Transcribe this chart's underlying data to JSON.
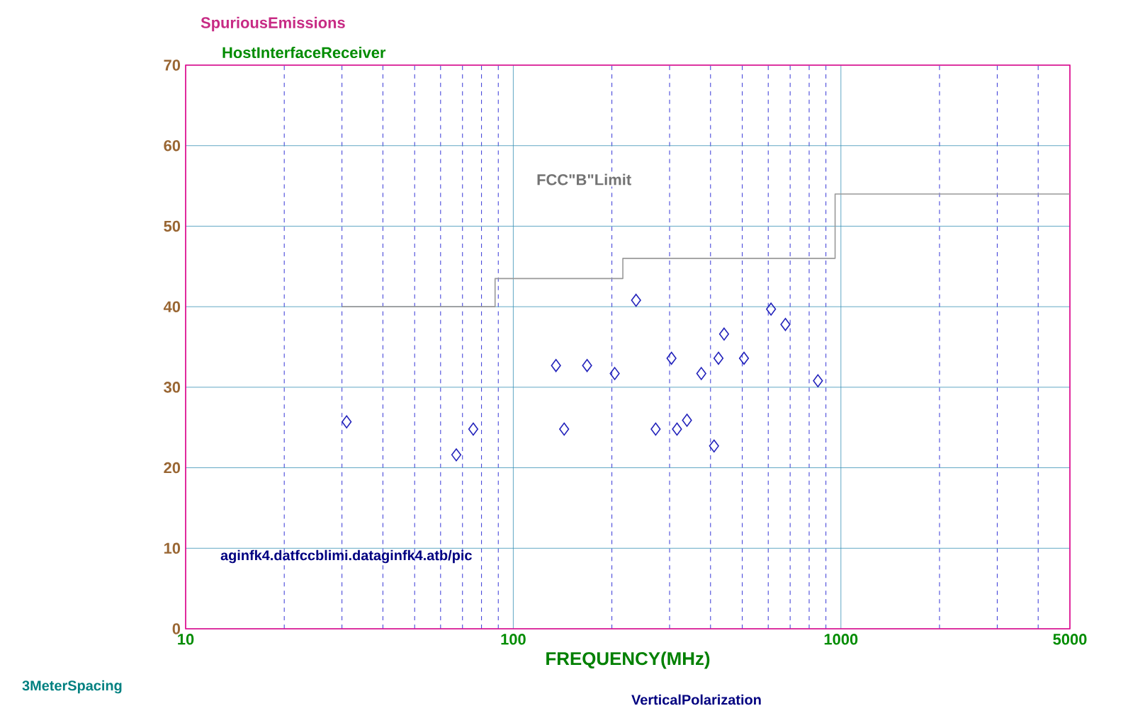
{
  "chart_data": {
    "type": "scatter",
    "title": "SpuriousEmissions",
    "subtitle": "HostInterfaceReceiver",
    "xlabel": "FREQUENCY(MHz)",
    "annotations": [
      "aginfk4.datfccblimi.dataginfk4.atb/pic",
      "3MeterSpacing",
      "VerticalPolarization"
    ],
    "log": "x",
    "xlim": [
      10,
      5000
    ],
    "xticks": [
      10,
      {
        "value": 20,
        "label": null
      },
      {
        "value": 30,
        "label": null
      },
      {
        "value": 40,
        "label": null
      },
      {
        "value": 50,
        "label": null
      },
      {
        "value": 60,
        "label": null
      },
      {
        "value": 70,
        "label": null
      },
      {
        "value": 80,
        "label": null
      },
      {
        "value": 90,
        "label": null
      },
      100,
      {
        "value": 200,
        "label": null
      },
      {
        "value": 300,
        "label": null
      },
      {
        "value": 400,
        "label": null
      },
      {
        "value": 500,
        "label": null
      },
      {
        "value": 600,
        "label": null
      },
      {
        "value": 700,
        "label": null
      },
      {
        "value": 800,
        "label": null
      },
      {
        "value": 900,
        "label": null
      },
      1000,
      {
        "value": 2000,
        "label": null
      },
      {
        "value": 3000,
        "label": null
      },
      {
        "value": 4000,
        "label": null
      },
      5000
    ],
    "ylim": [
      0,
      70
    ],
    "yticks": [
      0,
      10,
      20,
      30,
      40,
      50,
      60,
      70
    ],
    "grid": true,
    "series": [
      {
        "name": "FCC\"B\"Limit",
        "type": "line",
        "marker": "none",
        "color": "#999999",
        "x": [
          30,
          88,
          88,
          216,
          216,
          960,
          960,
          5000
        ],
        "values": [
          40,
          40,
          43.5,
          43.5,
          46,
          46,
          54,
          54
        ]
      },
      {
        "type": "scatter",
        "marker": "diamond",
        "color": "#2222bb",
        "x": [
          31,
          67,
          75.5,
          135,
          143,
          168,
          204,
          237,
          272,
          304,
          316,
          339,
          375,
          410,
          423,
          440,
          506,
          612,
          677,
          851
        ],
        "values": [
          25.7,
          21.6,
          24.8,
          32.7,
          24.8,
          32.7,
          31.7,
          40.8,
          24.8,
          33.6,
          24.8,
          25.9,
          31.7,
          22.7,
          33.6,
          36.6,
          33.6,
          39.7,
          37.8,
          30.8
        ]
      }
    ]
  }
}
